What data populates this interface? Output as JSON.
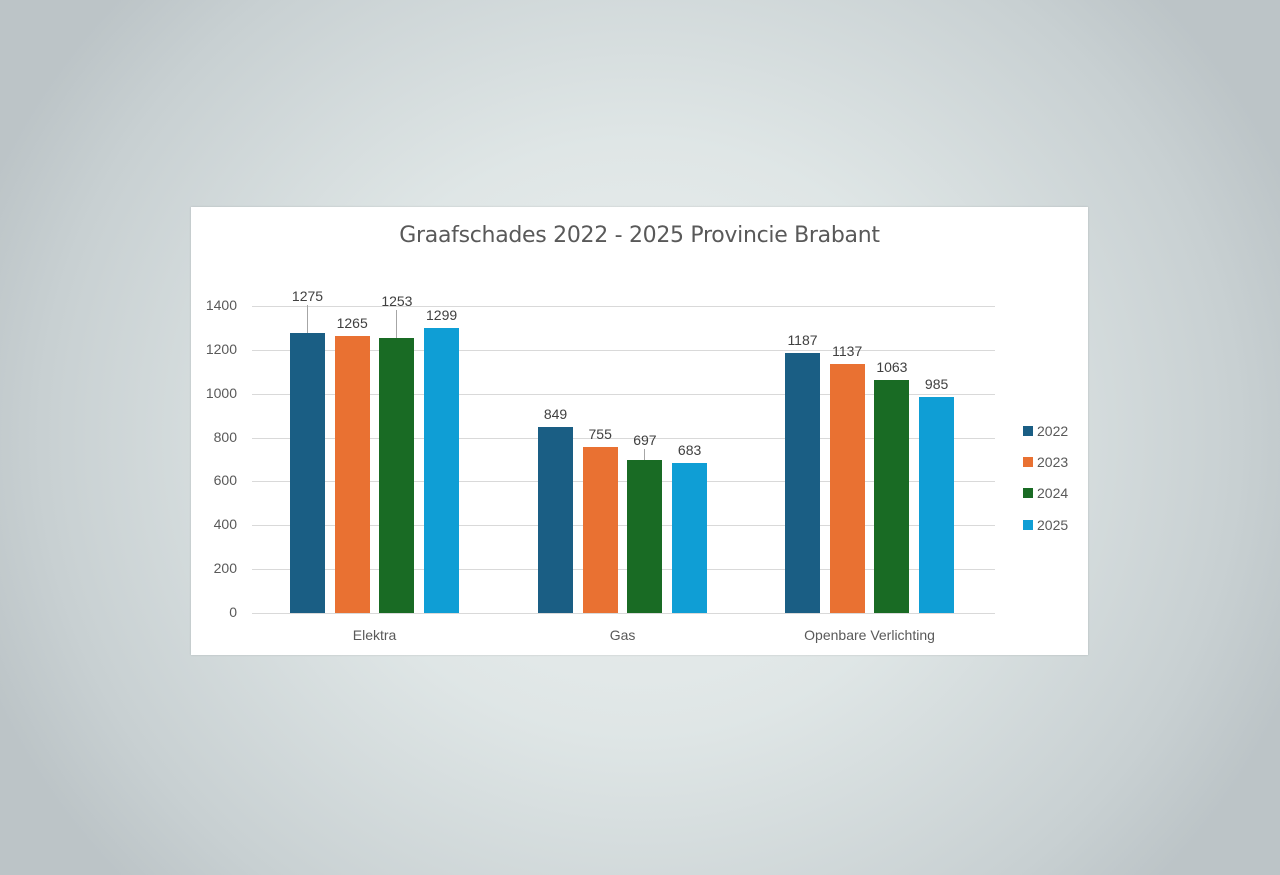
{
  "chart_data": {
    "type": "bar",
    "title": "Graafschades 2022 - 2025 Provincie Brabant",
    "xlabel": "",
    "ylabel": "",
    "categories": [
      "Elektra",
      "Gas",
      "Openbare Verlichting"
    ],
    "series": [
      {
        "name": "2022",
        "color": "#1a5e84",
        "values": [
          1275,
          849,
          1187
        ]
      },
      {
        "name": "2023",
        "color": "#e97132",
        "values": [
          1265,
          755,
          1137
        ]
      },
      {
        "name": "2024",
        "color": "#196b24",
        "values": [
          1253,
          697,
          1063
        ]
      },
      {
        "name": "2025",
        "color": "#0f9ed5",
        "values": [
          1299,
          683,
          985
        ]
      }
    ],
    "ylim": [
      0,
      1400
    ],
    "yticks": [
      "0",
      "200",
      "400",
      "600",
      "800",
      "1000",
      "1200",
      "1400"
    ],
    "grid": true,
    "legend_position": "right",
    "data_labels": true
  }
}
